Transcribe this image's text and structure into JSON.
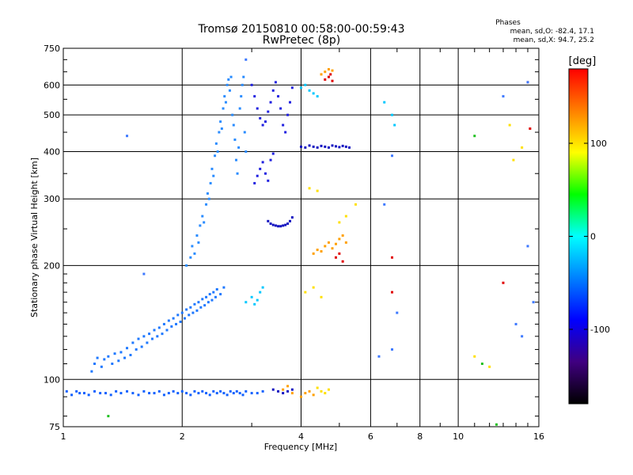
{
  "chart_data": {
    "type": "scatter",
    "title": "Tromsø 20150810 00:58:00-00:59:43",
    "subtitle": "RwPretec (8p)",
    "xlabel": "Frequency [MHz]",
    "ylabel": "Stationary phase Virtual Height [km]",
    "x_scale": "log",
    "y_scale": "log",
    "xlim": [
      1,
      16
    ],
    "ylim": [
      75,
      750
    ],
    "x_ticks": [
      1,
      2,
      4,
      6,
      8,
      10,
      16
    ],
    "x_tick_labels": [
      "1",
      "2",
      "4",
      "6",
      "8",
      "10",
      "16"
    ],
    "x_minor_ticks": [
      3,
      5,
      7,
      9,
      11,
      12,
      13,
      14,
      15
    ],
    "y_ticks": [
      75,
      100,
      200,
      300,
      400,
      500,
      600,
      750
    ],
    "y_tick_labels": [
      "75",
      "100",
      "200",
      "300",
      "400",
      "500",
      "600",
      "750"
    ],
    "y_minor_ticks": [
      80,
      90,
      110,
      120,
      130,
      140,
      150,
      160,
      170,
      180,
      190,
      250,
      350,
      450,
      550,
      650,
      700
    ],
    "grid": true,
    "phase_info": {
      "heading": "Phases",
      "line_o": "mean, sd,O: -82.4, 17.1",
      "line_x": "mean, sd,X:  94.7, 25.2"
    },
    "colorbar": {
      "label": "[deg]",
      "range": [
        -180,
        180
      ],
      "ticks": [
        100,
        0,
        -100
      ],
      "tick_labels": [
        "100",
        "0",
        "-100"
      ],
      "colors": [
        "#ff0000",
        "#ff8000",
        "#ffff00",
        "#00ff00",
        "#00ffff",
        "#0080ff",
        "#0000ff",
        "#400080",
        "#000000"
      ]
    },
    "series": [
      {
        "color": "#1060ff",
        "points": [
          [
            1.02,
            93
          ],
          [
            1.05,
            91
          ],
          [
            1.08,
            93
          ],
          [
            1.1,
            92
          ],
          [
            1.13,
            92
          ],
          [
            1.16,
            91
          ],
          [
            1.2,
            93
          ],
          [
            1.24,
            92
          ],
          [
            1.28,
            92
          ],
          [
            1.32,
            91
          ],
          [
            1.36,
            93
          ],
          [
            1.4,
            92
          ],
          [
            1.45,
            93
          ],
          [
            1.5,
            92
          ],
          [
            1.55,
            91
          ],
          [
            1.6,
            93
          ],
          [
            1.65,
            92
          ],
          [
            1.7,
            92
          ],
          [
            1.75,
            93
          ],
          [
            1.8,
            91
          ],
          [
            1.85,
            92
          ],
          [
            1.9,
            93
          ],
          [
            1.95,
            92
          ],
          [
            2.0,
            93
          ],
          [
            2.05,
            92
          ],
          [
            2.1,
            91
          ],
          [
            2.15,
            93
          ],
          [
            2.2,
            92
          ],
          [
            2.25,
            93
          ],
          [
            2.3,
            92
          ],
          [
            2.35,
            91
          ],
          [
            2.4,
            93
          ],
          [
            2.45,
            92
          ],
          [
            2.5,
            93
          ],
          [
            2.55,
            92
          ],
          [
            2.6,
            91
          ],
          [
            2.65,
            93
          ],
          [
            2.7,
            92
          ],
          [
            2.75,
            93
          ],
          [
            2.8,
            92
          ],
          [
            2.85,
            91
          ],
          [
            2.9,
            93
          ],
          [
            3.0,
            92
          ],
          [
            3.1,
            92
          ],
          [
            3.2,
            93
          ]
        ]
      },
      {
        "color": "#1e78ff",
        "points": [
          [
            1.18,
            105
          ],
          [
            1.2,
            110
          ],
          [
            1.22,
            114
          ],
          [
            1.25,
            108
          ],
          [
            1.27,
            113
          ],
          [
            1.3,
            115
          ],
          [
            1.33,
            110
          ],
          [
            1.35,
            117
          ],
          [
            1.38,
            112
          ],
          [
            1.4,
            118
          ],
          [
            1.43,
            114
          ],
          [
            1.45,
            121
          ],
          [
            1.48,
            116
          ],
          [
            1.5,
            125
          ],
          [
            1.53,
            120
          ],
          [
            1.55,
            128
          ],
          [
            1.58,
            122
          ],
          [
            1.6,
            130
          ],
          [
            1.63,
            125
          ],
          [
            1.65,
            132
          ],
          [
            1.68,
            128
          ],
          [
            1.7,
            135
          ],
          [
            1.73,
            130
          ],
          [
            1.75,
            137
          ],
          [
            1.78,
            132
          ],
          [
            1.8,
            140
          ],
          [
            1.83,
            135
          ],
          [
            1.85,
            143
          ],
          [
            1.88,
            138
          ],
          [
            1.9,
            145
          ],
          [
            1.93,
            140
          ],
          [
            1.95,
            148
          ],
          [
            1.98,
            142
          ],
          [
            2.0,
            150
          ],
          [
            2.03,
            145
          ],
          [
            2.05,
            153
          ],
          [
            2.08,
            148
          ],
          [
            2.1,
            155
          ],
          [
            2.13,
            150
          ],
          [
            2.15,
            158
          ],
          [
            2.18,
            152
          ],
          [
            2.2,
            160
          ],
          [
            2.23,
            155
          ],
          [
            2.25,
            163
          ],
          [
            2.28,
            157
          ],
          [
            2.3,
            165
          ],
          [
            2.33,
            160
          ],
          [
            2.35,
            168
          ],
          [
            2.38,
            162
          ],
          [
            2.4,
            170
          ],
          [
            2.43,
            165
          ],
          [
            2.45,
            173
          ],
          [
            2.5,
            168
          ],
          [
            2.55,
            175
          ]
        ]
      },
      {
        "color": "#2a8cff",
        "points": [
          [
            2.05,
            200
          ],
          [
            2.1,
            210
          ],
          [
            2.12,
            225
          ],
          [
            2.15,
            215
          ],
          [
            2.18,
            240
          ],
          [
            2.2,
            230
          ],
          [
            2.22,
            255
          ],
          [
            2.25,
            270
          ],
          [
            2.27,
            260
          ],
          [
            2.3,
            290
          ],
          [
            2.32,
            310
          ],
          [
            2.34,
            300
          ],
          [
            2.36,
            330
          ],
          [
            2.38,
            360
          ],
          [
            2.4,
            345
          ],
          [
            2.42,
            390
          ],
          [
            2.44,
            420
          ],
          [
            2.46,
            400
          ],
          [
            2.48,
            450
          ],
          [
            2.5,
            480
          ],
          [
            2.52,
            460
          ],
          [
            2.54,
            520
          ],
          [
            2.56,
            560
          ],
          [
            2.58,
            540
          ],
          [
            2.6,
            600
          ],
          [
            2.62,
            620
          ],
          [
            2.64,
            580
          ],
          [
            2.66,
            630
          ],
          [
            2.68,
            500
          ],
          [
            2.7,
            470
          ],
          [
            2.72,
            430
          ],
          [
            2.74,
            380
          ],
          [
            2.76,
            350
          ],
          [
            2.78,
            410
          ],
          [
            2.8,
            520
          ],
          [
            2.82,
            560
          ],
          [
            2.84,
            600
          ],
          [
            2.86,
            630
          ],
          [
            2.88,
            450
          ],
          [
            2.9,
            400
          ]
        ]
      },
      {
        "color": "#2020e0",
        "points": [
          [
            3.0,
            600
          ],
          [
            3.05,
            560
          ],
          [
            3.1,
            520
          ],
          [
            3.15,
            490
          ],
          [
            3.2,
            470
          ],
          [
            3.25,
            480
          ],
          [
            3.3,
            510
          ],
          [
            3.35,
            540
          ],
          [
            3.4,
            580
          ],
          [
            3.45,
            610
          ],
          [
            3.5,
            560
          ],
          [
            3.55,
            520
          ],
          [
            3.6,
            470
          ],
          [
            3.65,
            450
          ],
          [
            3.7,
            500
          ],
          [
            3.75,
            540
          ],
          [
            3.8,
            590
          ],
          [
            3.05,
            330
          ],
          [
            3.1,
            345
          ],
          [
            3.15,
            360
          ],
          [
            3.2,
            375
          ],
          [
            3.25,
            350
          ],
          [
            3.3,
            335
          ],
          [
            3.35,
            380
          ],
          [
            3.4,
            395
          ]
        ]
      },
      {
        "color": "#1010c0",
        "points": [
          [
            3.3,
            262
          ],
          [
            3.35,
            258
          ],
          [
            3.4,
            256
          ],
          [
            3.45,
            255
          ],
          [
            3.5,
            254
          ],
          [
            3.55,
            254
          ],
          [
            3.6,
            255
          ],
          [
            3.65,
            256
          ],
          [
            3.7,
            258
          ],
          [
            3.75,
            262
          ],
          [
            3.8,
            268
          ],
          [
            4.0,
            412
          ],
          [
            4.1,
            410
          ],
          [
            4.2,
            415
          ],
          [
            4.3,
            412
          ],
          [
            4.4,
            410
          ],
          [
            4.5,
            414
          ],
          [
            4.6,
            412
          ],
          [
            4.7,
            410
          ],
          [
            4.8,
            415
          ],
          [
            4.9,
            413
          ],
          [
            5.0,
            411
          ],
          [
            5.1,
            414
          ],
          [
            5.2,
            412
          ],
          [
            5.3,
            410
          ],
          [
            3.4,
            94
          ],
          [
            3.5,
            93
          ],
          [
            3.6,
            92
          ],
          [
            3.7,
            93
          ],
          [
            3.8,
            94
          ]
        ]
      },
      {
        "color": "#00c8ff",
        "points": [
          [
            2.9,
            160
          ],
          [
            3.0,
            165
          ],
          [
            3.05,
            158
          ],
          [
            3.1,
            162
          ],
          [
            3.15,
            170
          ],
          [
            3.2,
            175
          ],
          [
            4.0,
            590
          ],
          [
            4.1,
            600
          ],
          [
            4.2,
            580
          ],
          [
            4.3,
            570
          ],
          [
            4.4,
            560
          ],
          [
            6.5,
            540
          ],
          [
            6.8,
            500
          ],
          [
            6.9,
            470
          ]
        ]
      },
      {
        "color": "#ffa000",
        "points": [
          [
            4.3,
            215
          ],
          [
            4.4,
            220
          ],
          [
            4.5,
            218
          ],
          [
            4.6,
            225
          ],
          [
            4.7,
            230
          ],
          [
            4.8,
            222
          ],
          [
            4.9,
            228
          ],
          [
            5.0,
            235
          ],
          [
            5.1,
            240
          ],
          [
            5.2,
            230
          ],
          [
            4.5,
            640
          ],
          [
            4.6,
            650
          ],
          [
            4.7,
            660
          ],
          [
            4.8,
            655
          ],
          [
            3.6,
            94
          ],
          [
            3.7,
            96
          ],
          [
            3.8,
            92
          ],
          [
            4.0,
            90
          ],
          [
            4.1,
            92
          ],
          [
            4.2,
            93
          ],
          [
            4.3,
            91
          ]
        ]
      },
      {
        "color": "#ffe000",
        "points": [
          [
            4.1,
            170
          ],
          [
            4.3,
            175
          ],
          [
            4.5,
            165
          ],
          [
            4.2,
            320
          ],
          [
            4.4,
            315
          ],
          [
            5.0,
            260
          ],
          [
            5.2,
            270
          ],
          [
            5.5,
            290
          ],
          [
            4.4,
            95
          ],
          [
            4.5,
            93
          ],
          [
            4.6,
            92
          ],
          [
            4.7,
            94
          ],
          [
            11.0,
            115
          ],
          [
            12.0,
            108
          ],
          [
            13.5,
            470
          ],
          [
            13.8,
            380
          ],
          [
            14.5,
            410
          ]
        ]
      },
      {
        "color": "#e00000",
        "points": [
          [
            4.6,
            620
          ],
          [
            4.7,
            630
          ],
          [
            4.75,
            640
          ],
          [
            4.8,
            615
          ],
          [
            4.9,
            210
          ],
          [
            5.0,
            215
          ],
          [
            5.1,
            205
          ],
          [
            6.8,
            170
          ],
          [
            6.8,
            210
          ],
          [
            13.0,
            180
          ],
          [
            15.0,
            610
          ],
          [
            15.2,
            460
          ]
        ]
      },
      {
        "color": "#3c78ff",
        "points": [
          [
            1.45,
            440
          ],
          [
            1.6,
            190
          ],
          [
            2.9,
            700
          ],
          [
            6.3,
            115
          ],
          [
            6.5,
            290
          ],
          [
            6.8,
            390
          ],
          [
            6.8,
            120
          ],
          [
            7.0,
            150
          ],
          [
            13.0,
            560
          ],
          [
            14.0,
            140
          ],
          [
            14.5,
            130
          ],
          [
            15.0,
            610
          ],
          [
            15.0,
            225
          ],
          [
            15.5,
            160
          ]
        ]
      },
      {
        "color": "#20c020",
        "points": [
          [
            1.3,
            80
          ],
          [
            11.5,
            110
          ],
          [
            12.5,
            76
          ],
          [
            11.0,
            440
          ]
        ]
      }
    ]
  }
}
